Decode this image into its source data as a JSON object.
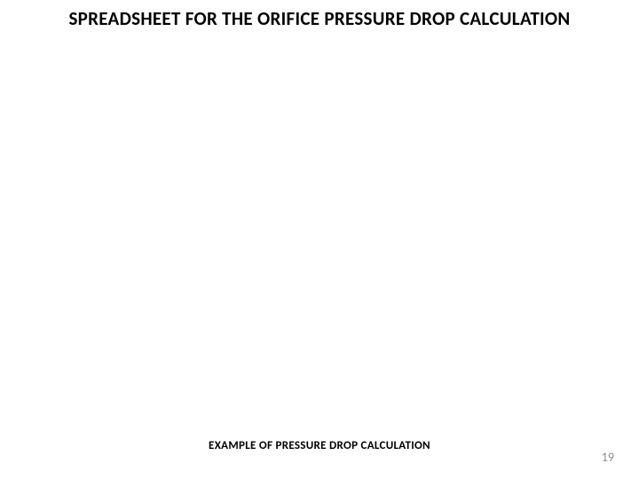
{
  "slide": {
    "title": "SPREADSHEET FOR THE ORIFICE PRESSURE DROP CALCULATION",
    "subtitle": "EXAMPLE OF PRESSURE DROP CALCULATION",
    "page_number": "19",
    "background_color": "#ffffff",
    "title_color": "#000000",
    "title_fontsize": 21,
    "title_fontweight": "bold",
    "subtitle_color": "#000000",
    "subtitle_fontsize": 13,
    "subtitle_fontweight": "bold",
    "page_number_color": "#8b8b8b",
    "page_number_fontsize": 14
  }
}
